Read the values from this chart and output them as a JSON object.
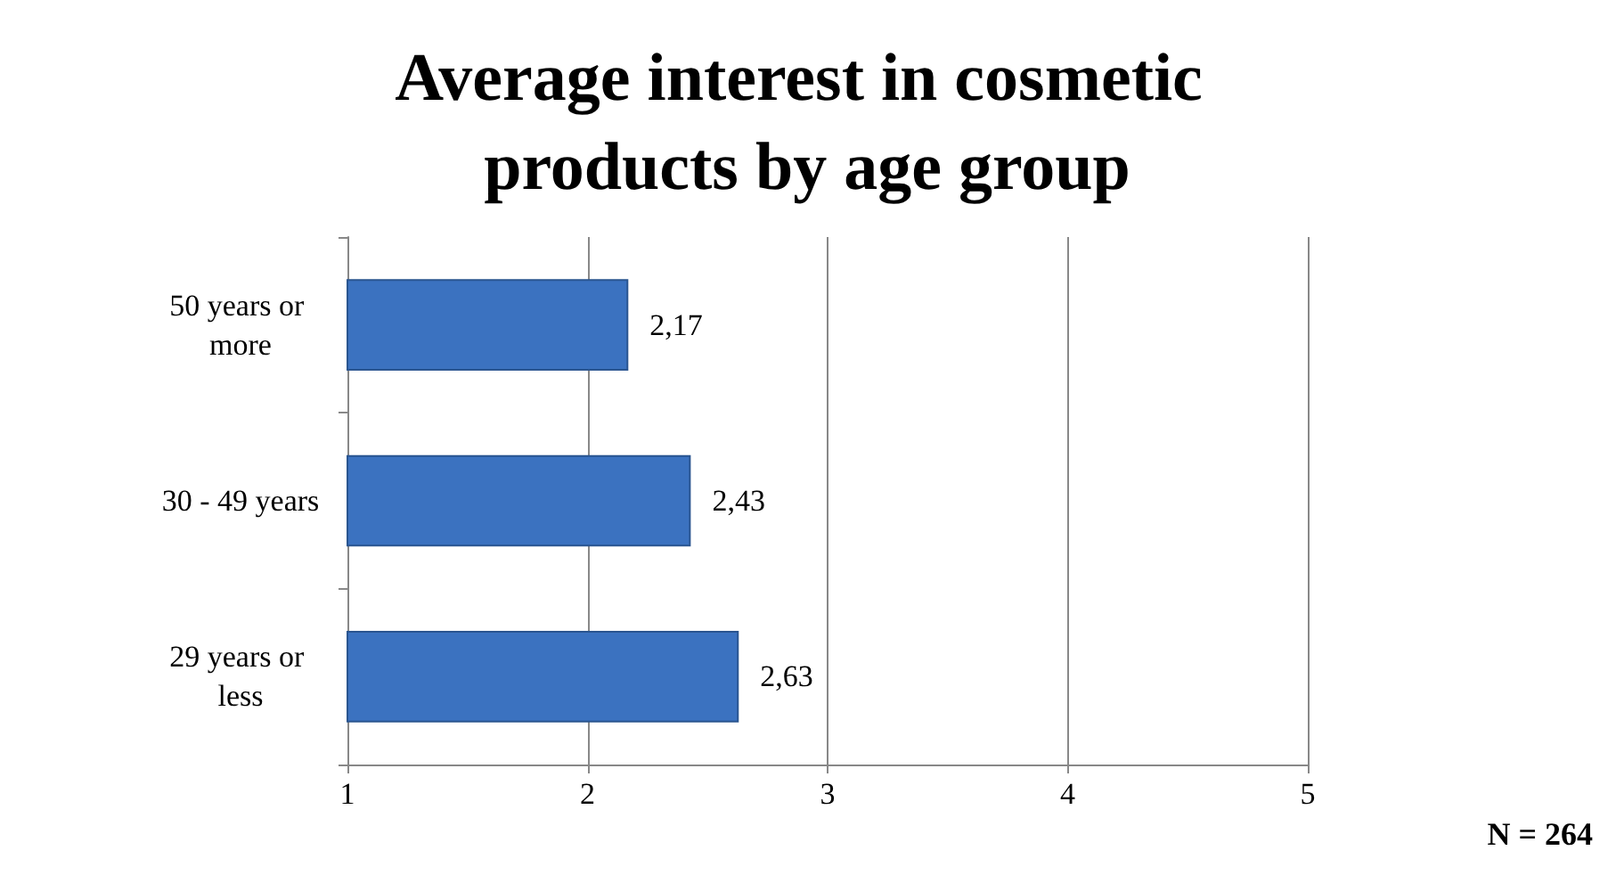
{
  "chart_data": {
    "type": "bar",
    "orientation": "horizontal",
    "title": "Average interest in cosmetic products by age group",
    "categories": [
      "50 years or more",
      "30 - 49 years",
      "29 years or less"
    ],
    "values": [
      2.17,
      2.43,
      2.63
    ],
    "color": "#3b72c0",
    "value_labels": [
      "2,17",
      "2,43",
      "2,63"
    ],
    "xlim": [
      1,
      5
    ],
    "xticks": [
      1,
      2,
      3,
      4,
      5
    ],
    "grid": "x",
    "annotations": [
      "N = 264"
    ]
  }
}
